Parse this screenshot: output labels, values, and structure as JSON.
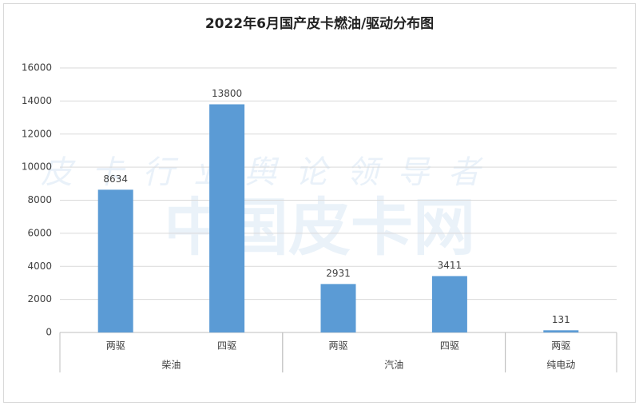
{
  "chart_data": {
    "type": "bar",
    "title": "2022年6月国产皮卡燃油/驱动分布图",
    "watermark": [
      "皮卡行业舆论领导者",
      "中国皮卡网"
    ],
    "groups": [
      {
        "name": "柴油",
        "categories": [
          "两驱",
          "四驱"
        ],
        "values": [
          8634,
          13800
        ]
      },
      {
        "name": "汽油",
        "categories": [
          "两驱",
          "四驱"
        ],
        "values": [
          2931,
          3411
        ]
      },
      {
        "name": "纯电动",
        "categories": [
          "两驱"
        ],
        "values": [
          131
        ]
      }
    ],
    "color": "#5b9bd5",
    "ylim": [
      0,
      16000
    ],
    "yticks": [
      0,
      2000,
      4000,
      6000,
      8000,
      10000,
      12000,
      14000,
      16000
    ],
    "grid": true
  }
}
